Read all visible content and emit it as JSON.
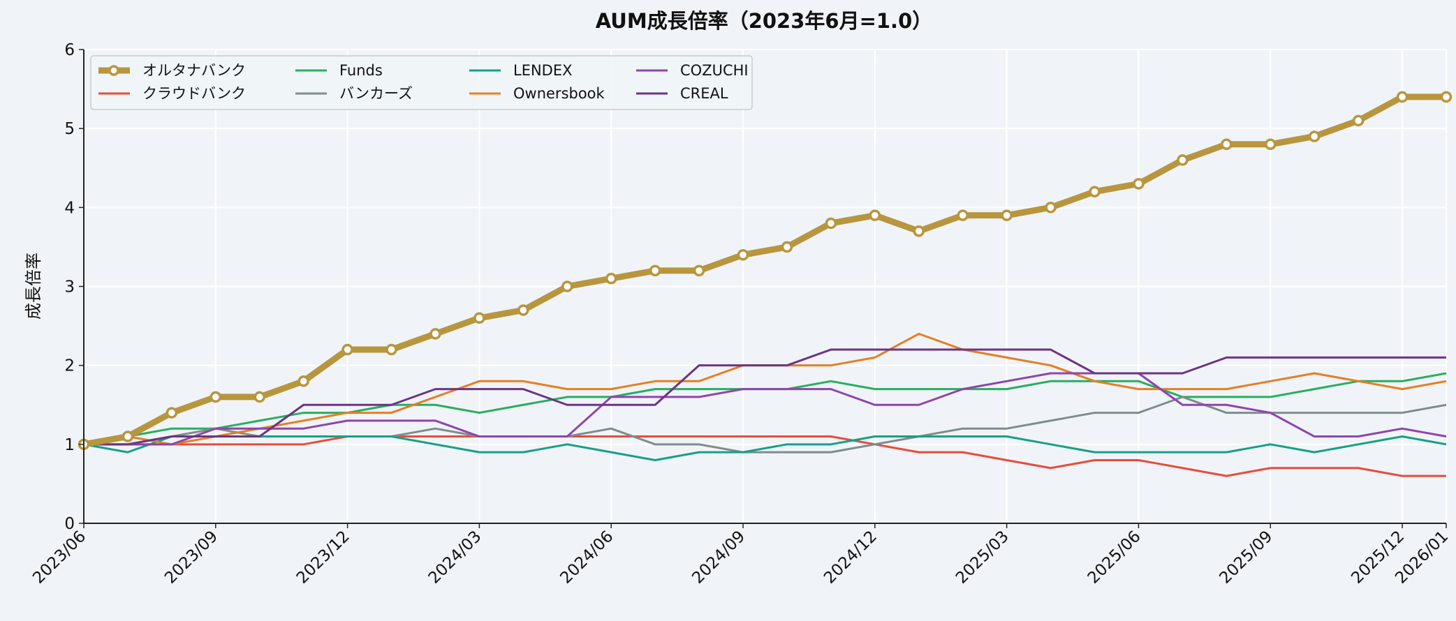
{
  "chart_data": {
    "type": "line",
    "title": "AUM成長倍率（2023年6月=1.0）",
    "xlabel": "",
    "ylabel": "成長倍率",
    "ylim": [
      0,
      6
    ],
    "yticks": [
      "0",
      "1",
      "2",
      "3",
      "4",
      "5",
      "6"
    ],
    "grid": true,
    "legend_position": "top-left",
    "x": [
      "2023/06",
      "2023/07",
      "2023/08",
      "2023/09",
      "2023/10",
      "2023/11",
      "2023/12",
      "2024/01",
      "2024/02",
      "2024/03",
      "2024/04",
      "2024/05",
      "2024/06",
      "2024/07",
      "2024/08",
      "2024/09",
      "2024/10",
      "2024/11",
      "2024/12",
      "2025/01",
      "2025/02",
      "2025/03",
      "2025/04",
      "2025/05",
      "2025/06",
      "2025/07",
      "2025/08",
      "2025/09",
      "2025/10",
      "2025/11",
      "2025/12",
      "2026/01"
    ],
    "xticks": [
      "2023/06",
      "2023/09",
      "2023/12",
      "2024/03",
      "2024/06",
      "2024/09",
      "2024/12",
      "2025/03",
      "2025/06",
      "2025/09",
      "2025/12",
      "2026/01"
    ],
    "series": [
      {
        "name": "オルタナバンク",
        "color": "#b8963e",
        "highlight": true,
        "values": [
          1.0,
          1.1,
          1.4,
          1.6,
          1.6,
          1.8,
          2.2,
          2.2,
          2.4,
          2.6,
          2.7,
          3.0,
          3.1,
          3.2,
          3.2,
          3.4,
          3.5,
          3.8,
          3.9,
          3.7,
          3.9,
          3.9,
          4.0,
          4.2,
          4.3,
          4.6,
          4.8,
          4.8,
          4.9,
          5.1,
          5.4,
          5.4
        ]
      },
      {
        "name": "クラウドバンク",
        "color": "#e74c3c",
        "values": [
          1.0,
          1.0,
          1.0,
          1.0,
          1.0,
          1.0,
          1.1,
          1.1,
          1.1,
          1.1,
          1.1,
          1.1,
          1.1,
          1.1,
          1.1,
          1.1,
          1.1,
          1.1,
          1.0,
          0.9,
          0.9,
          0.8,
          0.7,
          0.8,
          0.8,
          0.7,
          0.6,
          0.7,
          0.7,
          0.7,
          0.6,
          0.6
        ]
      },
      {
        "name": "Funds",
        "color": "#27ae60",
        "values": [
          1.0,
          1.1,
          1.2,
          1.2,
          1.3,
          1.4,
          1.4,
          1.5,
          1.5,
          1.4,
          1.5,
          1.6,
          1.6,
          1.7,
          1.7,
          1.7,
          1.7,
          1.8,
          1.7,
          1.7,
          1.7,
          1.7,
          1.8,
          1.8,
          1.8,
          1.6,
          1.6,
          1.6,
          1.7,
          1.8,
          1.8,
          1.9
        ]
      },
      {
        "name": "バンカーズ",
        "color": "#7f8c8d",
        "values": [
          1.0,
          1.0,
          1.1,
          1.2,
          1.1,
          1.1,
          1.1,
          1.1,
          1.2,
          1.1,
          1.1,
          1.1,
          1.2,
          1.0,
          1.0,
          0.9,
          0.9,
          0.9,
          1.0,
          1.1,
          1.2,
          1.2,
          1.3,
          1.4,
          1.4,
          1.6,
          1.4,
          1.4,
          1.4,
          1.4,
          1.4,
          1.5
        ]
      },
      {
        "name": "LENDEX",
        "color": "#16a085",
        "values": [
          1.0,
          0.9,
          1.1,
          1.1,
          1.1,
          1.1,
          1.1,
          1.1,
          1.0,
          0.9,
          0.9,
          1.0,
          0.9,
          0.8,
          0.9,
          0.9,
          1.0,
          1.0,
          1.1,
          1.1,
          1.1,
          1.1,
          1.0,
          0.9,
          0.9,
          0.9,
          0.9,
          1.0,
          0.9,
          1.0,
          1.1,
          1.0
        ]
      },
      {
        "name": "Ownersbook",
        "color": "#e67e22",
        "values": [
          1.0,
          1.1,
          1.0,
          1.1,
          1.2,
          1.3,
          1.4,
          1.4,
          1.6,
          1.8,
          1.8,
          1.7,
          1.7,
          1.8,
          1.8,
          2.0,
          2.0,
          2.0,
          2.1,
          2.4,
          2.2,
          2.1,
          2.0,
          1.8,
          1.7,
          1.7,
          1.7,
          1.8,
          1.9,
          1.8,
          1.7,
          1.8
        ]
      },
      {
        "name": "COZUCHI",
        "color": "#8e44ad",
        "values": [
          1.0,
          1.0,
          1.0,
          1.2,
          1.2,
          1.2,
          1.3,
          1.3,
          1.3,
          1.1,
          1.1,
          1.1,
          1.6,
          1.6,
          1.6,
          1.7,
          1.7,
          1.7,
          1.5,
          1.5,
          1.7,
          1.8,
          1.9,
          1.9,
          1.9,
          1.5,
          1.5,
          1.4,
          1.1,
          1.1,
          1.2,
          1.1
        ]
      },
      {
        "name": "CREAL",
        "color": "#6c3483",
        "values": [
          1.0,
          1.0,
          1.1,
          1.1,
          1.1,
          1.5,
          1.5,
          1.5,
          1.7,
          1.7,
          1.7,
          1.5,
          1.5,
          1.5,
          2.0,
          2.0,
          2.0,
          2.2,
          2.2,
          2.2,
          2.2,
          2.2,
          2.2,
          1.9,
          1.9,
          1.9,
          2.1,
          2.1,
          2.1,
          2.1,
          2.1,
          2.1
        ]
      }
    ]
  }
}
